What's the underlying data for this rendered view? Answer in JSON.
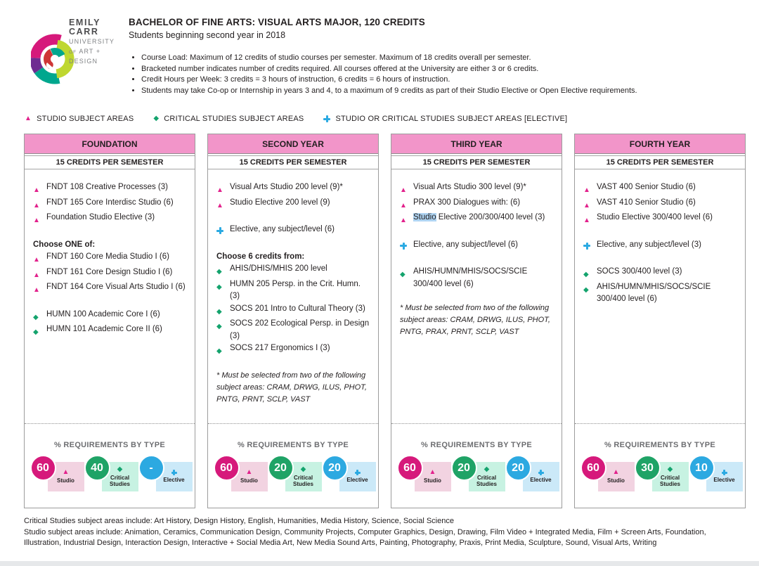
{
  "logo": {
    "name_line1": "EMILY",
    "name_line2": "CARR",
    "sub_line1": "UNIVERSITY",
    "sub_of": "OF",
    "sub_line2": " ART + DESIGN"
  },
  "header": {
    "title": "BACHELOR OF FINE ARTS: VISUAL ARTS MAJOR, 120 CREDITS",
    "subtitle": "Students beginning second year in 2018",
    "bullets": [
      "Course Load: Maximum of 12 credits of studio courses per semester. Maximum of 18 credits overall per semester.",
      "Bracketed number indicates number of credits required. All courses offered at the University are either 3 or 6 credits.",
      "Credit Hours per Week: 3 credits = 3 hours of instruction, 6 credits = 6 hours of instruction.",
      "Students may take Co-op or Internship in years 3 and 4, to a maximum of 9 credits as part of their Studio Elective or Open Elective requirements."
    ]
  },
  "legend": [
    {
      "icon": "triangle",
      "label": "STUDIO SUBJECT AREAS"
    },
    {
      "icon": "diamond",
      "label": "CRITICAL STUDIES SUBJECT AREAS"
    },
    {
      "icon": "plus",
      "label": "STUDIO OR CRITICAL STUDIES SUBJECT AREAS [ELECTIVE]"
    }
  ],
  "percent_heading": "% REQUIREMENTS BY TYPE",
  "credits_subtitle": "15 CREDITS PER SEMESTER",
  "columns": [
    {
      "title": "FOUNDATION",
      "groups": [
        {
          "heading": null,
          "items": [
            {
              "icon": "triangle",
              "text": "FNDT 108 Creative Processes (3)"
            },
            {
              "icon": "triangle",
              "text": "FNDT 165 Core Interdisc Studio (6)"
            },
            {
              "icon": "triangle",
              "text": "Foundation Studio Elective (3)"
            }
          ]
        },
        {
          "heading": "Choose ONE of:",
          "items": [
            {
              "icon": "triangle",
              "text": "FNDT 160 Core Media Studio I (6)"
            },
            {
              "icon": "triangle",
              "text": "FNDT 161 Core Design Studio I (6)"
            },
            {
              "icon": "triangle",
              "text": "FNDT 164 Core Visual Arts Studio I (6)"
            }
          ]
        },
        {
          "heading": null,
          "items": [
            {
              "icon": "diamond",
              "text": "HUMN 100 Academic Core I (6)"
            },
            {
              "icon": "diamond",
              "text": "HUMN 101 Academic Core II (6)"
            }
          ]
        }
      ],
      "note": null,
      "percents": [
        {
          "value": "60",
          "type": "studio",
          "label": "Studio"
        },
        {
          "value": "40",
          "type": "critical",
          "label": "Critical Studies"
        },
        {
          "value": "-",
          "type": "elective",
          "label": "Elective"
        }
      ]
    },
    {
      "title": "SECOND YEAR",
      "groups": [
        {
          "heading": null,
          "items": [
            {
              "icon": "triangle",
              "text": "Visual Arts Studio 200 level (9)*"
            },
            {
              "icon": "triangle",
              "text": "Studio Elective 200 level (9)"
            }
          ]
        },
        {
          "heading": null,
          "items": [
            {
              "icon": "plus",
              "text": "Elective, any subject/level (6)"
            }
          ]
        },
        {
          "heading": "Choose 6 credits from:",
          "items": [
            {
              "icon": "diamond",
              "text": "AHIS/DHIS/MHIS 200 level"
            },
            {
              "icon": "diamond",
              "text": "HUMN 205 Persp. in the Crit. Humn. (3)"
            },
            {
              "icon": "diamond",
              "text": "SOCS 201 Intro to Cultural Theory (3)"
            },
            {
              "icon": "diamond",
              "text": "SOCS 202 Ecological Persp. in Design (3)"
            },
            {
              "icon": "diamond",
              "text": "SOCS 217 Ergonomics I (3)"
            }
          ]
        }
      ],
      "note": "* Must be selected from two of the following subject areas: CRAM, DRWG, ILUS, PHOT, PNTG, PRNT, SCLP, VAST",
      "percents": [
        {
          "value": "60",
          "type": "studio",
          "label": "Studio"
        },
        {
          "value": "20",
          "type": "critical",
          "label": "Critical Studies"
        },
        {
          "value": "20",
          "type": "elective",
          "label": "Elective"
        }
      ]
    },
    {
      "title": "THIRD YEAR",
      "groups": [
        {
          "heading": null,
          "items": [
            {
              "icon": "triangle",
              "text": "Visual Arts Studio 300 level (9)*"
            },
            {
              "icon": "triangle",
              "text": "PRAX 300 Dialogues with: (6)"
            },
            {
              "icon": "triangle",
              "text": "Studio Elective 200/300/400 level (3)",
              "highlight": "Studio"
            }
          ]
        },
        {
          "heading": null,
          "items": [
            {
              "icon": "plus",
              "text": "Elective, any subject/level (6)"
            }
          ]
        },
        {
          "heading": null,
          "items": [
            {
              "icon": "diamond",
              "text": "AHIS/HUMN/MHIS/SOCS/SCIE 300/400 level (6)"
            }
          ]
        }
      ],
      "note": "* Must be selected from two of the following subject areas: CRAM, DRWG, ILUS, PHOT, PNTG, PRAX, PRNT, SCLP, VAST",
      "percents": [
        {
          "value": "60",
          "type": "studio",
          "label": "Studio"
        },
        {
          "value": "20",
          "type": "critical",
          "label": "Critical Studies"
        },
        {
          "value": "20",
          "type": "elective",
          "label": "Elective"
        }
      ]
    },
    {
      "title": "FOURTH YEAR",
      "groups": [
        {
          "heading": null,
          "items": [
            {
              "icon": "triangle",
              "text": "VAST 400 Senior Studio (6)"
            },
            {
              "icon": "triangle",
              "text": "VAST 410 Senior Studio (6)"
            },
            {
              "icon": "triangle",
              "text": "Studio Elective 300/400 level (6)"
            }
          ]
        },
        {
          "heading": null,
          "items": [
            {
              "icon": "plus",
              "text": "Elective, any subject/level (3)"
            }
          ]
        },
        {
          "heading": null,
          "items": [
            {
              "icon": "diamond",
              "text": "SOCS 300/400 level (3)"
            },
            {
              "icon": "diamond",
              "text": "AHIS/HUMN/MHIS/SOCS/SCIE 300/400 level (6)"
            }
          ]
        }
      ],
      "note": null,
      "percents": [
        {
          "value": "60",
          "type": "studio",
          "label": "Studio"
        },
        {
          "value": "30",
          "type": "critical",
          "label": "Critical Studies"
        },
        {
          "value": "10",
          "type": "elective",
          "label": "Elective"
        }
      ]
    }
  ],
  "footer": {
    "line1": "Critical Studies subject areas include: Art History, Design History, English, Humanities, Media History, Science, Social Science",
    "line2": "Studio subject areas include: Animation, Ceramics, Communication Design, Community Projects, Computer Graphics, Design, Drawing, Film Video + Integrated Media, Film + Screen Arts, Foundation, Illustration, Industrial Design, Interaction Design, Interactive + Social Media Art, New Media Sound Arts, Painting, Photography, Praxis, Print Media, Sculpture, Sound, Visual Arts, Writing"
  },
  "colors": {
    "header_pink": "#F295C9",
    "studio_accent": "#E2228C",
    "critical_accent": "#14A36D",
    "elective_accent": "#2BAAE2",
    "studio_circle": "#D6197B",
    "critical_circle": "#1FA366",
    "elective_circle": "#2CA9E1",
    "studio_card": "#F2D3E1",
    "critical_card": "#C7F2E2",
    "elective_card": "#CBE9F8",
    "selection_highlight": "#AFD4F2"
  }
}
